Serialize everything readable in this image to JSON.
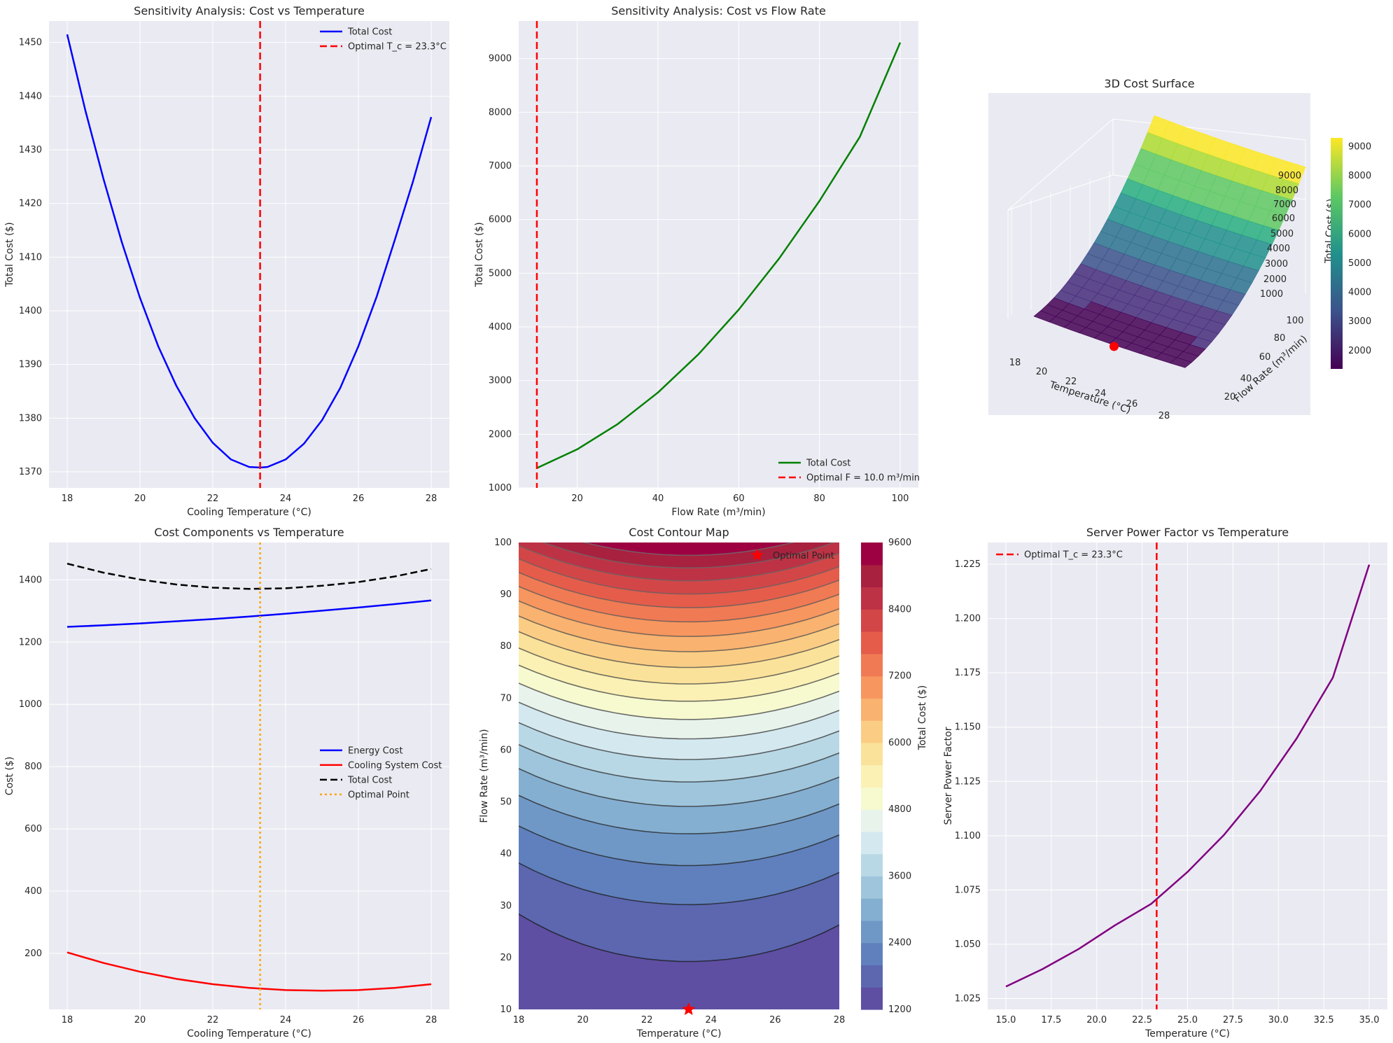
{
  "colors": {
    "bg": "#eaeaf2",
    "blue": "#0000ff",
    "red": "#ff0000",
    "green": "#008000",
    "orange": "#ffa500",
    "purple": "#800080",
    "black": "#000000"
  },
  "chart_data": [
    {
      "id": "p1",
      "type": "line",
      "title": "Sensitivity Analysis: Cost vs Temperature",
      "xlabel": "Cooling Temperature (°C)",
      "ylabel": "Total Cost ($)",
      "xlim": [
        17.5,
        28.5
      ],
      "ylim": [
        1367,
        1454
      ],
      "xticks": [
        18,
        20,
        22,
        24,
        26,
        28
      ],
      "yticks": [
        1370,
        1380,
        1390,
        1400,
        1410,
        1420,
        1430,
        1440,
        1450
      ],
      "series": [
        {
          "name": "Total Cost",
          "color": "#0000ff",
          "dash": "solid",
          "x": [
            18,
            18.5,
            19,
            19.5,
            20,
            20.5,
            21,
            21.5,
            22,
            22.5,
            23,
            23.3,
            23.5,
            24,
            24.5,
            25,
            25.5,
            26,
            26.5,
            27,
            27.5,
            28
          ],
          "y": [
            1451.5,
            1437.3,
            1424.5,
            1412.8,
            1402.4,
            1393.4,
            1386,
            1380,
            1375.4,
            1372.3,
            1370.9,
            1370.8,
            1370.9,
            1372.3,
            1375.2,
            1379.6,
            1385.6,
            1393.4,
            1402.6,
            1413.2,
            1424.1,
            1436.1
          ]
        }
      ],
      "vlines": [
        {
          "name": "Optimal T_c = 23.3°C",
          "x": 23.3,
          "color": "#ff0000",
          "dash": "dashed"
        }
      ],
      "legend": "top-right"
    },
    {
      "id": "p2",
      "type": "line",
      "title": "Sensitivity Analysis: Cost vs Flow Rate",
      "xlabel": "Flow Rate (m³/min)",
      "ylabel": "Total Cost ($)",
      "xlim": [
        5.5,
        104.5
      ],
      "ylim": [
        1000,
        9700
      ],
      "xticks": [
        20,
        40,
        60,
        80,
        100
      ],
      "yticks": [
        1000,
        2000,
        3000,
        4000,
        5000,
        6000,
        7000,
        8000,
        9000
      ],
      "series": [
        {
          "name": "Total Cost",
          "color": "#008000",
          "dash": "solid",
          "x": [
            10,
            20,
            30,
            40,
            50,
            60,
            70,
            80,
            90,
            100
          ],
          "y": [
            1371,
            1719,
            2188,
            2778,
            3489,
            4321,
            5274,
            6348,
            7543,
            9300
          ]
        }
      ],
      "vlines": [
        {
          "name": "Optimal F = 10.0 m³/min",
          "x": 10,
          "color": "#ff0000",
          "dash": "dashed"
        }
      ],
      "legend": "bottom-right"
    },
    {
      "id": "p3",
      "type": "surface",
      "title": "3D Cost Surface",
      "xlabel": "Temperature (°C)",
      "ylabel": "Flow Rate (m³/min)",
      "zlabel": "Total Cost ($)",
      "xticks": [
        18,
        20,
        22,
        24,
        26,
        28
      ],
      "yticks": [
        20,
        40,
        60,
        80,
        100
      ],
      "zticks": [
        1000,
        2000,
        3000,
        4000,
        5000,
        6000,
        7000,
        8000,
        9000
      ],
      "colorbar_ticks": [
        2000,
        3000,
        4000,
        5000,
        6000,
        7000,
        8000,
        9000
      ],
      "crange": [
        1371,
        9300
      ],
      "optimal": {
        "x": 23.3,
        "y": 10,
        "z": 1371
      }
    },
    {
      "id": "p4",
      "type": "line",
      "title": "Cost Components vs Temperature",
      "xlabel": "Cooling Temperature (°C)",
      "ylabel": "Cost ($)",
      "xlim": [
        17.5,
        28.5
      ],
      "ylim": [
        20,
        1520
      ],
      "xticks": [
        18,
        20,
        22,
        24,
        26,
        28
      ],
      "yticks": [
        200,
        400,
        600,
        800,
        1000,
        1200,
        1400
      ],
      "series": [
        {
          "name": "Energy Cost",
          "color": "#0000ff",
          "dash": "solid",
          "x": [
            18,
            19,
            20,
            21,
            22,
            23,
            24,
            25,
            26,
            27,
            28
          ],
          "y": [
            1249,
            1254,
            1260,
            1267,
            1274,
            1282,
            1291,
            1301,
            1311,
            1322,
            1334
          ]
        },
        {
          "name": "Cooling System Cost",
          "color": "#ff0000",
          "dash": "solid",
          "x": [
            18,
            19,
            20,
            21,
            22,
            23,
            24,
            25,
            26,
            27,
            28
          ],
          "y": [
            203,
            169,
            141,
            118,
            101,
            89,
            82,
            80,
            82,
            89,
            101
          ]
        },
        {
          "name": "Total Cost",
          "color": "#000000",
          "dash": "dashed",
          "x": [
            18,
            19,
            20,
            21,
            22,
            23,
            24,
            25,
            26,
            27,
            28
          ],
          "y": [
            1452,
            1423,
            1401,
            1385,
            1375,
            1371,
            1373,
            1381,
            1393,
            1411,
            1435
          ]
        }
      ],
      "vlines": [
        {
          "name": "Optimal Point",
          "x": 23.3,
          "color": "#ffa500",
          "dash": "dotted"
        }
      ],
      "legend": "center-right"
    },
    {
      "id": "p5",
      "type": "contour",
      "title": "Cost Contour Map",
      "xlabel": "Temperature (°C)",
      "ylabel": "Flow Rate (m³/min)",
      "xlim": [
        18,
        28
      ],
      "ylim": [
        10,
        100
      ],
      "xticks": [
        18,
        20,
        22,
        24,
        26,
        28
      ],
      "yticks": [
        10,
        20,
        30,
        40,
        50,
        60,
        70,
        80,
        90,
        100
      ],
      "colorbar_label": "Total Cost ($)",
      "colorbar_ticks": [
        1200,
        2400,
        3600,
        4800,
        6000,
        7200,
        8400,
        9600
      ],
      "levels": [
        1200,
        1600,
        2000,
        2400,
        2800,
        3200,
        3600,
        4000,
        4400,
        4800,
        5200,
        5600,
        6000,
        6400,
        6800,
        7200,
        7600,
        8000,
        8400,
        8800,
        9200,
        9600
      ],
      "markers": [
        {
          "name": "Optimal Point",
          "x": 23.3,
          "y": 10,
          "color": "#ff0000"
        }
      ],
      "legend": "top-right"
    },
    {
      "id": "p6",
      "type": "line",
      "title": "Server Power Factor vs Temperature",
      "xlabel": "Temperature (°C)",
      "ylabel": "Server Power Factor",
      "xlim": [
        14,
        36
      ],
      "ylim": [
        1.02,
        1.235
      ],
      "xticks": [
        15.0,
        17.5,
        20.0,
        22.5,
        25.0,
        27.5,
        30.0,
        32.5,
        35.0
      ],
      "xtick_labels": [
        "15.0",
        "17.5",
        "20.0",
        "22.5",
        "25.0",
        "27.5",
        "30.0",
        "32.5",
        "35.0"
      ],
      "yticks": [
        1.025,
        1.05,
        1.075,
        1.1,
        1.125,
        1.15,
        1.175,
        1.2,
        1.225
      ],
      "ytick_labels": [
        "1.025",
        "1.050",
        "1.075",
        "1.100",
        "1.125",
        "1.150",
        "1.175",
        "1.200",
        "1.225"
      ],
      "series": [
        {
          "name": "",
          "color": "#800080",
          "dash": "solid",
          "x": [
            15,
            17,
            19,
            21,
            23,
            25,
            27,
            29,
            31,
            33,
            35
          ],
          "y": [
            1.0305,
            1.0385,
            1.0478,
            1.0587,
            1.0686,
            1.0833,
            1.1003,
            1.1206,
            1.1447,
            1.1728,
            1.2248
          ]
        }
      ],
      "vlines": [
        {
          "name": "Optimal T_c = 23.3°C",
          "x": 23.3,
          "color": "#ff0000",
          "dash": "dashed"
        }
      ],
      "legend": "top-left"
    }
  ]
}
